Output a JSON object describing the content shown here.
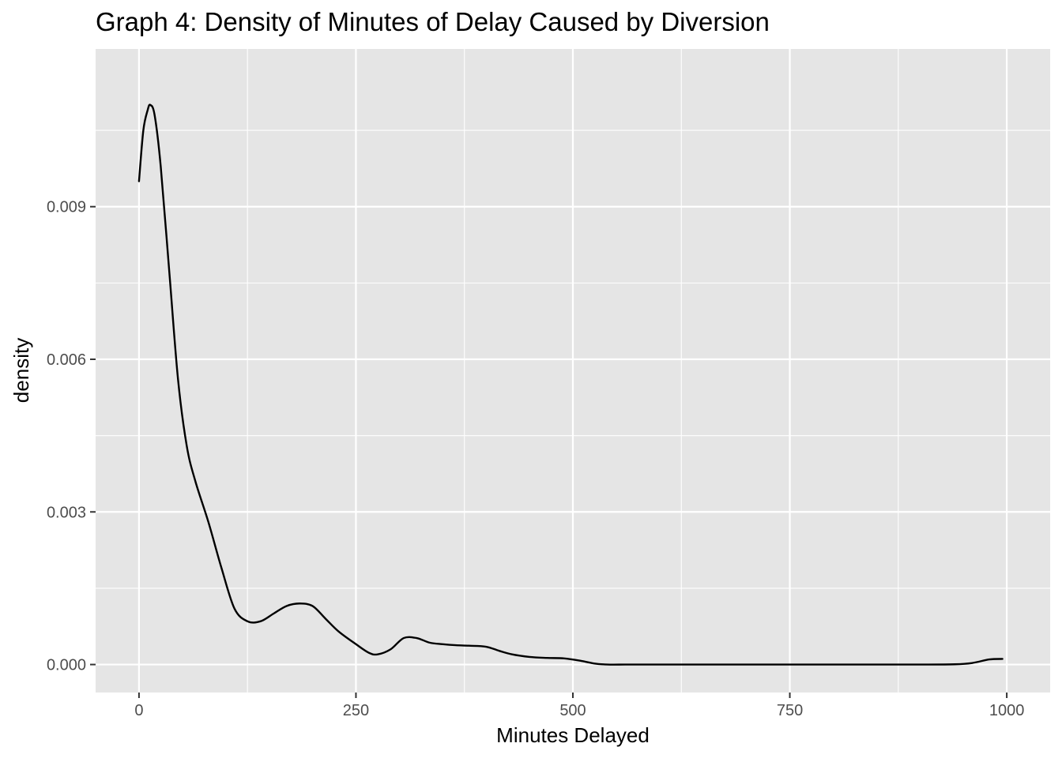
{
  "chart_data": {
    "type": "line",
    "title": "Graph 4: Density of Minutes of Delay Caused by Diversion",
    "xlabel": "Minutes Delayed",
    "ylabel": "density",
    "xlim": [
      -50,
      1050
    ],
    "ylim": [
      -0.00055,
      0.0121
    ],
    "x_ticks": [
      0,
      250,
      500,
      750,
      1000
    ],
    "x_tick_labels": [
      "0",
      "250",
      "500",
      "750",
      "1000"
    ],
    "y_ticks": [
      0.0,
      0.003,
      0.006,
      0.009
    ],
    "y_tick_labels": [
      "0.000",
      "0.003",
      "0.006",
      "0.009"
    ],
    "grid": true,
    "legend": "none",
    "colors": {
      "panel": "#e5e5e5",
      "grid": "#ffffff",
      "line": "#000000",
      "tick_text": "#4d4d4d",
      "tick_mark": "#333333"
    },
    "series": [
      {
        "x": [
          0,
          5,
          10,
          13,
          18,
          25,
          35,
          45,
          55,
          65,
          80,
          95,
          110,
          125,
          140,
          155,
          170,
          185,
          200,
          215,
          230,
          250,
          265,
          275,
          290,
          305,
          320,
          335,
          350,
          365,
          380,
          400,
          415,
          430,
          450,
          470,
          490,
          510,
          525,
          540,
          560,
          580,
          600,
          650,
          700,
          750,
          800,
          850,
          900,
          940,
          960,
          980,
          995
        ],
        "y": [
          0.0095,
          0.0105,
          0.0109,
          0.011,
          0.0108,
          0.0098,
          0.0077,
          0.0056,
          0.0043,
          0.0036,
          0.0028,
          0.0019,
          0.0011,
          0.00085,
          0.00085,
          0.001,
          0.00115,
          0.0012,
          0.00115,
          0.0009,
          0.00065,
          0.0004,
          0.00023,
          0.0002,
          0.0003,
          0.00052,
          0.00052,
          0.00043,
          0.0004,
          0.00038,
          0.00037,
          0.00035,
          0.00027,
          0.0002,
          0.00015,
          0.00013,
          0.00012,
          7e-05,
          2e-05,
          0.0,
          0.0,
          0.0,
          0.0,
          0.0,
          0.0,
          0.0,
          0.0,
          0.0,
          0.0,
          5e-06,
          3e-05,
          0.0001,
          0.00011
        ]
      }
    ]
  }
}
